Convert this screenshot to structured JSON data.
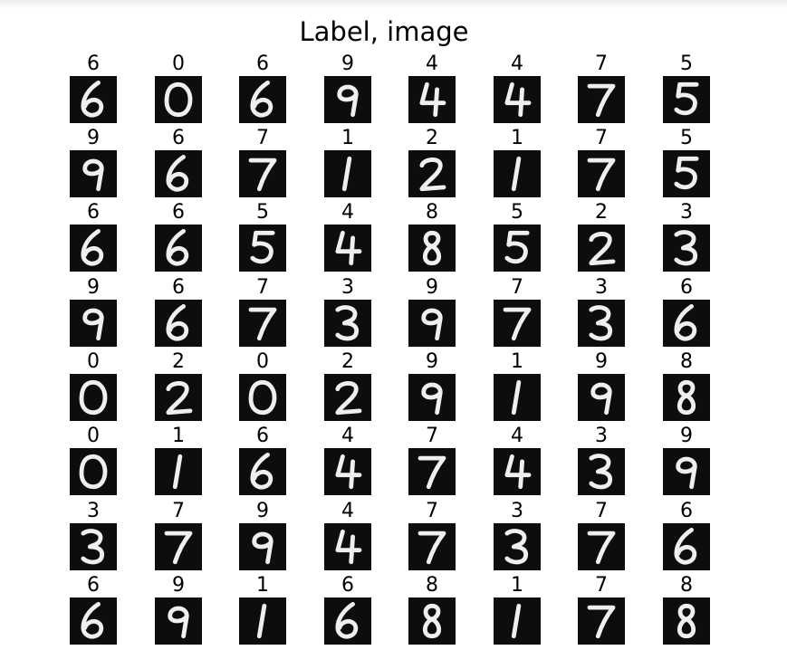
{
  "title": "Label, image",
  "colors": {
    "image_background": "#0d0d0d",
    "digit_stroke": "#efefef"
  },
  "grid": {
    "rows": 8,
    "cols": 8,
    "labels": [
      [
        "6",
        "0",
        "6",
        "9",
        "4",
        "4",
        "7",
        "5"
      ],
      [
        "9",
        "6",
        "7",
        "1",
        "2",
        "1",
        "7",
        "5"
      ],
      [
        "6",
        "6",
        "5",
        "4",
        "8",
        "5",
        "2",
        "3"
      ],
      [
        "9",
        "6",
        "7",
        "3",
        "9",
        "7",
        "3",
        "6"
      ],
      [
        "0",
        "2",
        "0",
        "2",
        "9",
        "1",
        "9",
        "8"
      ],
      [
        "0",
        "1",
        "6",
        "4",
        "7",
        "4",
        "3",
        "9"
      ],
      [
        "3",
        "7",
        "9",
        "4",
        "7",
        "3",
        "7",
        "6"
      ],
      [
        "6",
        "9",
        "1",
        "6",
        "8",
        "1",
        "7",
        "8"
      ]
    ]
  }
}
